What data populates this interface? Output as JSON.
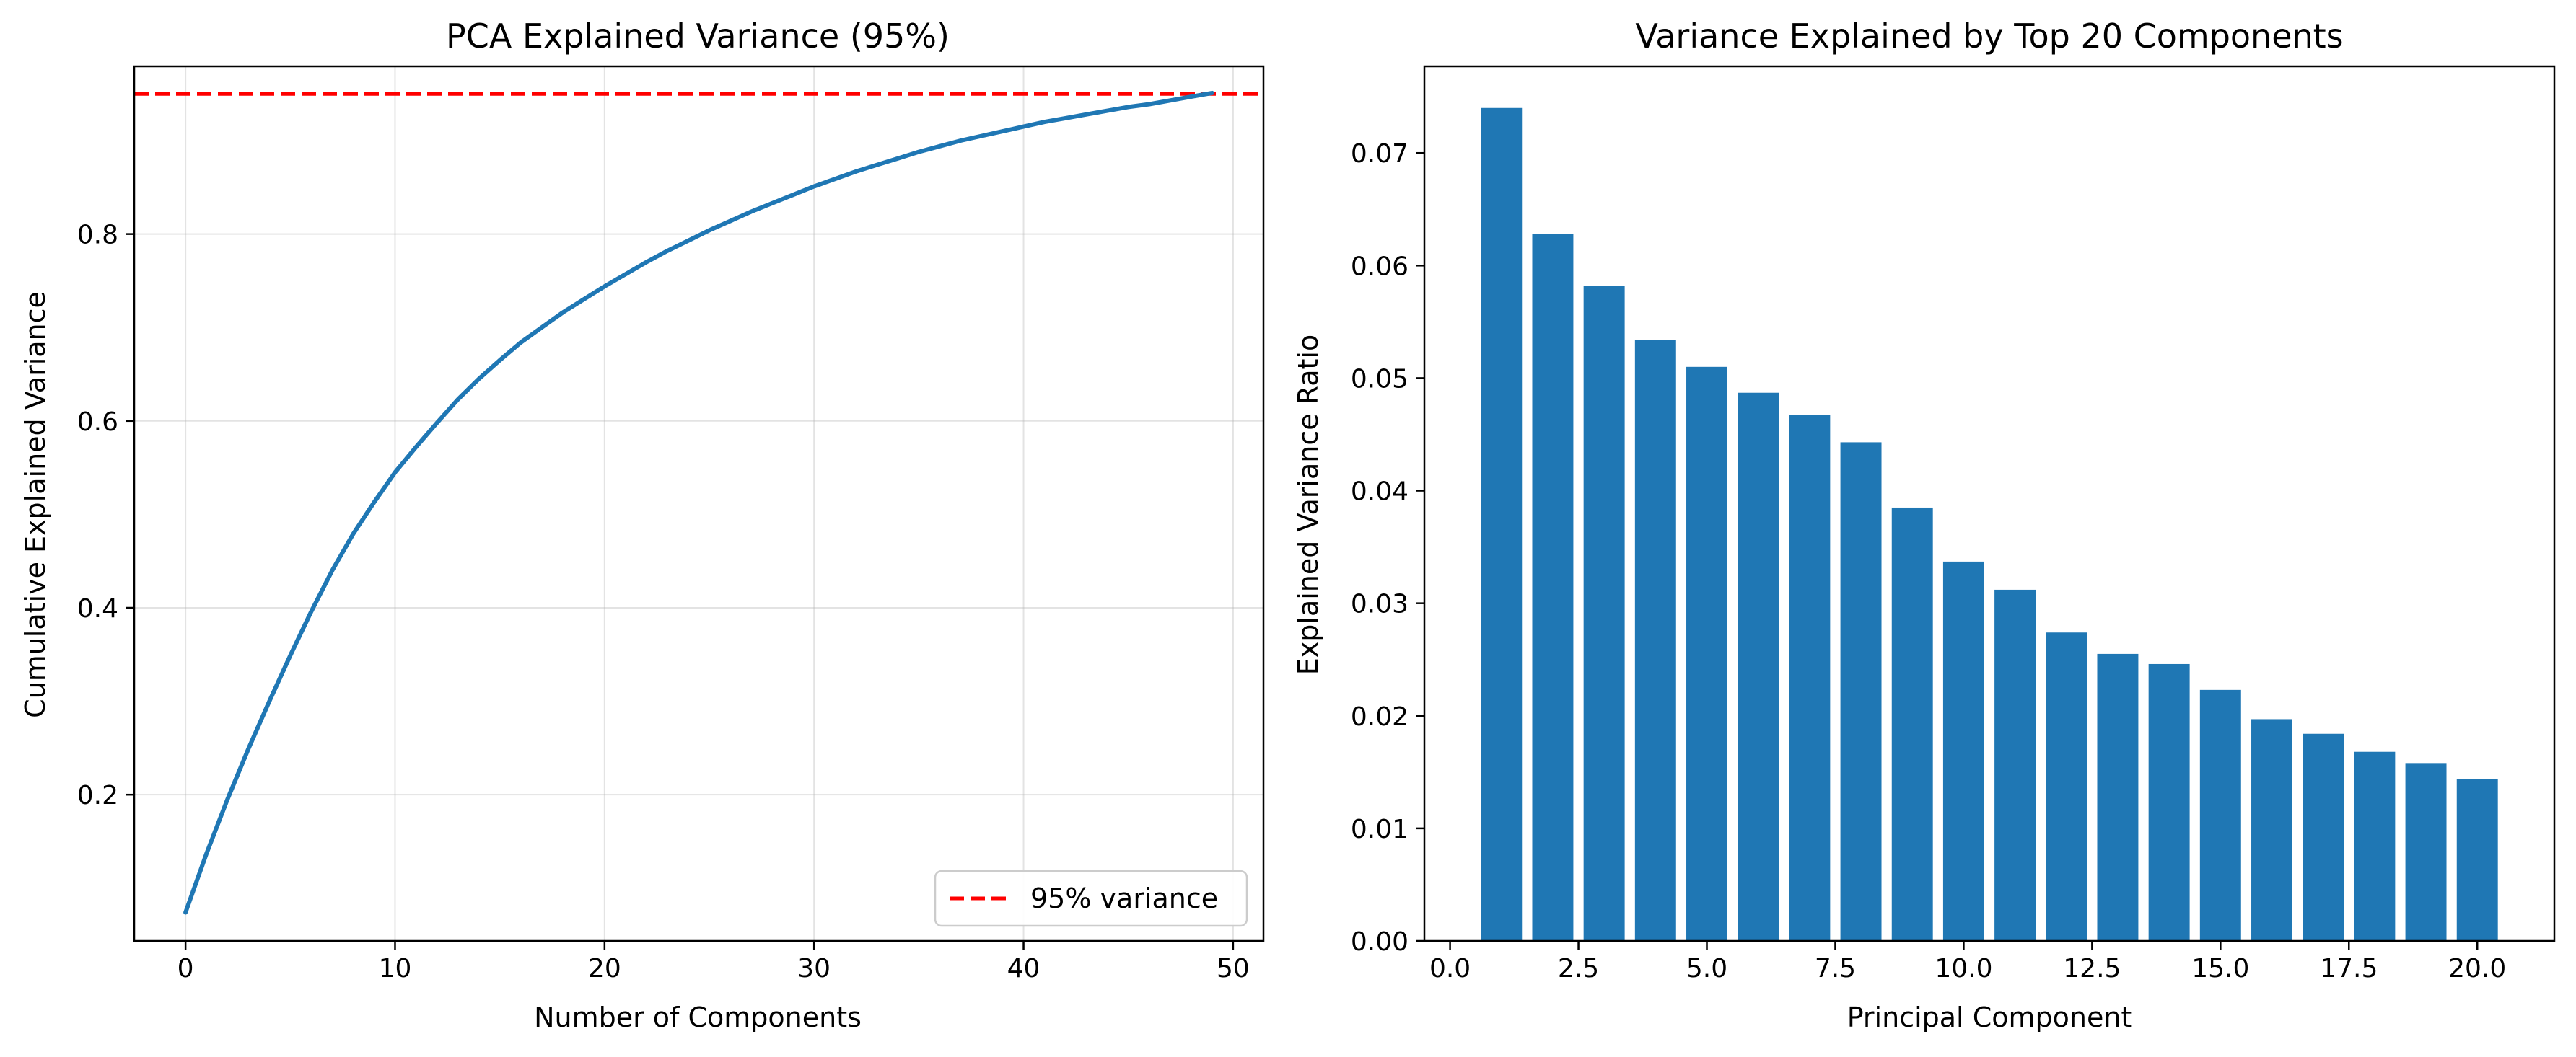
{
  "chart_data": [
    {
      "type": "line",
      "title": "PCA Explained Variance (95%)",
      "xlabel": "Number of Components",
      "ylabel": "Cumulative Explained Variance",
      "xlim": [
        -2.45,
        51.45
      ],
      "ylim": [
        0.0435,
        0.9795
      ],
      "xticks": [
        "0",
        "10",
        "20",
        "30",
        "40",
        "50"
      ],
      "yticks": [
        "0.2",
        "0.4",
        "0.6",
        "0.8"
      ],
      "grid": true,
      "legend_position": "lower right",
      "colors": {
        "line": "#1f77b4",
        "threshold": "#ff0000"
      },
      "threshold": {
        "name": "95% variance",
        "value": 0.95,
        "style": "dashed"
      },
      "series": [
        {
          "x": [
            0,
            1,
            2,
            3,
            4,
            5,
            6,
            7,
            8,
            9,
            10,
            11,
            12,
            13,
            14,
            15,
            16,
            17,
            18,
            19,
            20,
            21,
            22,
            23,
            24,
            25,
            26,
            27,
            28,
            29,
            30,
            31,
            32,
            33,
            34,
            35,
            36,
            37,
            38,
            39,
            40,
            41,
            42,
            43,
            44,
            45,
            46,
            47,
            48,
            49
          ],
          "values": [
            0.074,
            0.137,
            0.195,
            0.249,
            0.3,
            0.349,
            0.396,
            0.44,
            0.479,
            0.513,
            0.545,
            0.572,
            0.598,
            0.623,
            0.645,
            0.665,
            0.684,
            0.7,
            0.716,
            0.73,
            0.744,
            0.757,
            0.77,
            0.782,
            0.793,
            0.804,
            0.814,
            0.824,
            0.833,
            0.842,
            0.851,
            0.859,
            0.867,
            0.874,
            0.881,
            0.888,
            0.894,
            0.9,
            0.905,
            0.91,
            0.915,
            0.92,
            0.924,
            0.928,
            0.932,
            0.936,
            0.939,
            0.943,
            0.947,
            0.951
          ]
        }
      ]
    },
    {
      "type": "bar",
      "title": "Variance Explained by Top 20 Components",
      "xlabel": "Principal Component",
      "ylabel": "Explained Variance Ratio",
      "xlim": [
        -0.5,
        21.5
      ],
      "ylim": [
        0,
        0.0777
      ],
      "xticks": [
        "0.0",
        "2.5",
        "5.0",
        "7.5",
        "10.0",
        "12.5",
        "15.0",
        "17.5",
        "20.0"
      ],
      "yticks": [
        "0.00",
        "0.01",
        "0.02",
        "0.03",
        "0.04",
        "0.05",
        "0.06",
        "0.07"
      ],
      "grid": false,
      "colors": {
        "bar": "#1f77b4"
      },
      "categories": [
        1,
        2,
        3,
        4,
        5,
        6,
        7,
        8,
        9,
        10,
        11,
        12,
        13,
        14,
        15,
        16,
        17,
        18,
        19,
        20
      ],
      "values": [
        0.074,
        0.0628,
        0.0582,
        0.0534,
        0.051,
        0.0487,
        0.0467,
        0.0443,
        0.0385,
        0.0337,
        0.0312,
        0.0274,
        0.0255,
        0.0246,
        0.0223,
        0.0197,
        0.0184,
        0.0168,
        0.0158,
        0.0144
      ]
    }
  ]
}
